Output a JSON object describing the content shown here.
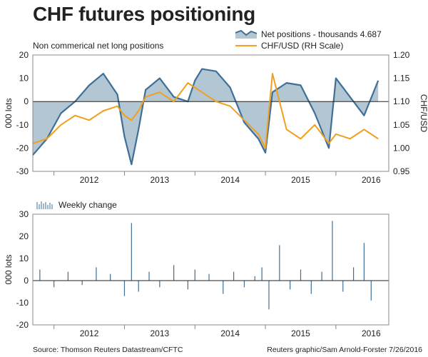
{
  "title": "CHF futures positioning",
  "subtitle": "Non commerical net long positions",
  "footer": {
    "source": "Source: Thomson Reuters Datastream/CFTC",
    "credit": "Reuters graphic/Sam Arnold-Forster 7/26/2016"
  },
  "colors": {
    "net_line": "#3f6f96",
    "net_fill": "#b3c6d4",
    "chf_line": "#f0a020",
    "bar": "#3f6f96",
    "frame": "#888888",
    "zero": "#222222"
  },
  "chart_data": [
    {
      "type": "area",
      "x_labels": [
        "2012",
        "2013",
        "2014",
        "2015",
        "2016"
      ],
      "ylabel": "000 lots",
      "y2label": "CHF/USD",
      "ylim": [
        -30,
        20
      ],
      "y_ticks": [
        "20",
        "10",
        "0",
        "-10",
        "-20",
        "-30"
      ],
      "y2lim": [
        0.95,
        1.2
      ],
      "y2_ticks": [
        "1.20",
        "1.15",
        "1.10",
        "1.05",
        "1.00",
        "0.95"
      ],
      "x": [
        2011.7,
        2011.9,
        2012.1,
        2012.3,
        2012.5,
        2012.7,
        2012.9,
        2013.0,
        2013.1,
        2013.2,
        2013.3,
        2013.5,
        2013.7,
        2013.9,
        2014.0,
        2014.1,
        2014.3,
        2014.5,
        2014.7,
        2014.9,
        2015.0,
        2015.1,
        2015.3,
        2015.5,
        2015.7,
        2015.9,
        2016.0,
        2016.2,
        2016.4,
        2016.6
      ],
      "series": [
        {
          "name": "Net positions - thousands 4.687",
          "axis": "left",
          "values": [
            -23,
            -16,
            -5,
            0,
            7,
            12,
            3,
            -15,
            -27,
            -12,
            5,
            10,
            2,
            0,
            9,
            14,
            13,
            6,
            -9,
            -16,
            -22,
            4,
            8,
            7,
            -5,
            -20,
            10,
            2,
            -6,
            9
          ]
        },
        {
          "name": "CHF/USD (RH Scale)",
          "axis": "right",
          "values": [
            1.01,
            1.02,
            1.05,
            1.07,
            1.06,
            1.08,
            1.09,
            1.07,
            1.06,
            1.08,
            1.11,
            1.12,
            1.1,
            1.14,
            1.13,
            1.12,
            1.1,
            1.09,
            1.06,
            1.03,
            1.0,
            1.16,
            1.04,
            1.02,
            1.05,
            1.01,
            1.03,
            1.02,
            1.04,
            1.02
          ]
        }
      ]
    },
    {
      "type": "bar",
      "x_labels": [
        "2012",
        "2013",
        "2014",
        "2015",
        "2016"
      ],
      "ylabel": "000 lots",
      "ylim": [
        -20,
        30
      ],
      "y_ticks": [
        "30",
        "20",
        "10",
        "0",
        "-10",
        "-20"
      ],
      "series": [
        {
          "name": "Weekly change",
          "x": [
            2011.8,
            2012.0,
            2012.2,
            2012.4,
            2012.6,
            2012.8,
            2013.0,
            2013.1,
            2013.2,
            2013.35,
            2013.5,
            2013.7,
            2013.9,
            2014.0,
            2014.2,
            2014.4,
            2014.55,
            2014.7,
            2014.85,
            2014.95,
            2015.05,
            2015.2,
            2015.35,
            2015.5,
            2015.65,
            2015.8,
            2015.95,
            2016.1,
            2016.25,
            2016.4,
            2016.5
          ],
          "values": [
            5,
            -3,
            4,
            -2,
            6,
            3,
            -7,
            26,
            -5,
            4,
            -3,
            7,
            -4,
            5,
            3,
            -6,
            4,
            -3,
            2,
            6,
            -13,
            16,
            -4,
            5,
            -6,
            4,
            27,
            -5,
            6,
            17,
            -9
          ]
        }
      ]
    }
  ]
}
